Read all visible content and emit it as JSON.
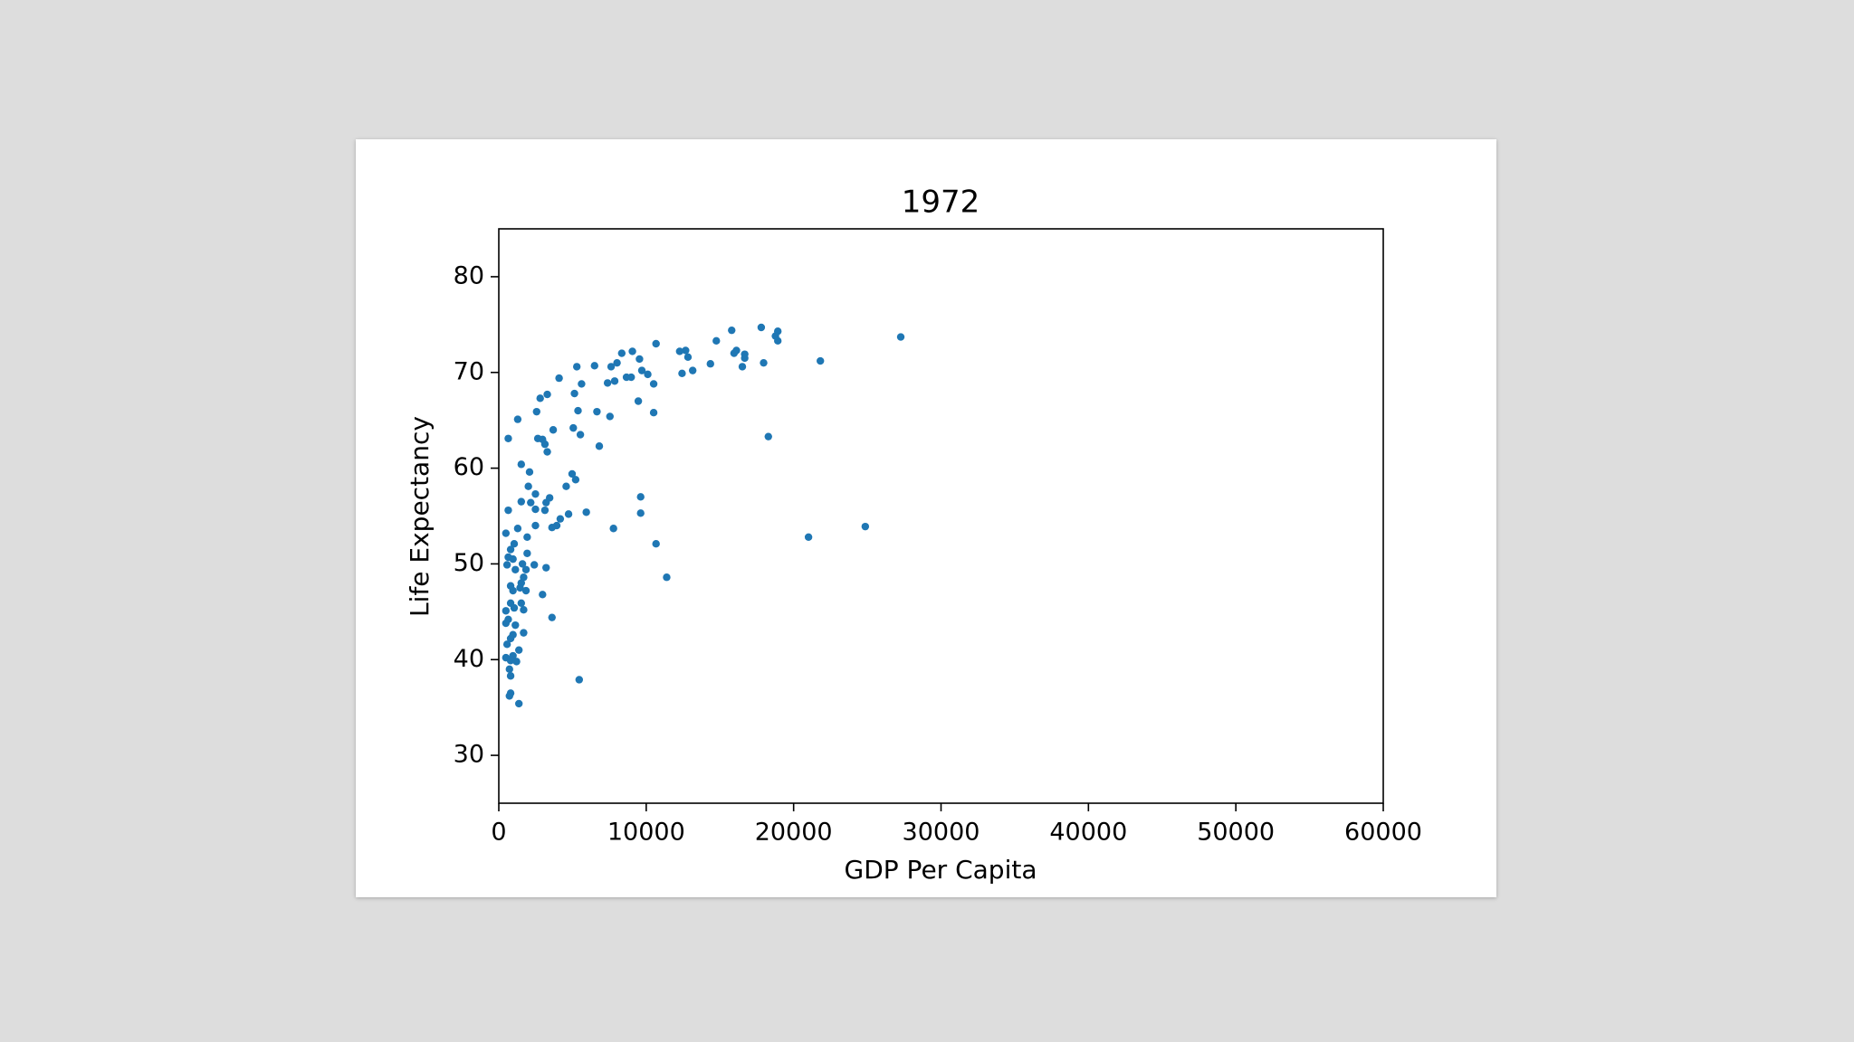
{
  "chart_data": {
    "type": "scatter",
    "title": "1972",
    "x_label": "GDP Per Capita",
    "y_label": "Life Expectancy",
    "color": "#1f77b4",
    "xlim": [
      0,
      60000
    ],
    "ylim": [
      25,
      85
    ],
    "xticks": [
      0,
      10000,
      20000,
      30000,
      40000,
      50000,
      60000
    ],
    "yticks": [
      30,
      40,
      50,
      60,
      70,
      80
    ],
    "x": [
      27268,
      21814,
      18927,
      18927,
      18767,
      17804,
      15799,
      14756,
      16120,
      15960,
      16682,
      16682,
      16521,
      17965,
      18286,
      12672,
      12271,
      12832,
      13153,
      12431,
      14356,
      10667,
      9063,
      9544,
      9704,
      10105,
      10506,
      8982,
      8662,
      7860,
      7378,
      8341,
      8020,
      7619,
      6496,
      5293,
      5614,
      5133,
      4090,
      3288,
      2807,
      1283,
      2566,
      642,
      3689,
      5053,
      5373,
      6657,
      7539,
      9464,
      10506,
      5534,
      6817,
      2647,
      2967,
      3128,
      3288,
      1524,
      2085,
      4972,
      5213,
      4571,
      2005,
      2486,
      3449,
      3208,
      1524,
      2165,
      2486,
      3128,
      642,
      4732,
      5935,
      9624,
      9624,
      7779,
      10667,
      11389,
      21012,
      24862,
      4170,
      3930,
      3609,
      1283,
      2486,
      481,
      1925,
      1043,
      802,
      1925,
      642,
      962,
      3208,
      2406,
      561,
      1123,
      1604,
      1845,
      1684,
      1524,
      1444,
      802,
      962,
      1845,
      802,
      1524,
      1684,
      1043,
      2967,
      3609,
      481,
      642,
      481,
      1123,
      962,
      1684,
      802,
      561,
      1363,
      962,
      481,
      802,
      1203,
      722,
      802,
      5454,
      802,
      722,
      1363
    ],
    "values": [
      73.7,
      71.2,
      74.3,
      73.3,
      73.8,
      74.7,
      74.4,
      73.3,
      72.3,
      72.0,
      71.9,
      71.5,
      70.6,
      71.0,
      63.3,
      72.3,
      72.2,
      71.6,
      70.2,
      69.9,
      70.9,
      73.0,
      72.2,
      71.4,
      70.2,
      69.8,
      68.8,
      69.5,
      69.5,
      69.1,
      68.9,
      72.0,
      71.0,
      70.6,
      70.7,
      70.6,
      68.8,
      67.8,
      69.4,
      67.7,
      67.3,
      65.1,
      65.9,
      63.1,
      64.0,
      64.2,
      66.0,
      65.9,
      65.4,
      67.0,
      65.8,
      63.5,
      62.3,
      63.1,
      63.0,
      62.5,
      61.7,
      60.4,
      59.6,
      59.4,
      58.8,
      58.1,
      58.1,
      57.3,
      56.9,
      56.4,
      56.5,
      56.4,
      55.7,
      55.6,
      55.6,
      55.2,
      55.4,
      57.0,
      55.3,
      53.7,
      52.1,
      48.6,
      52.8,
      53.9,
      54.7,
      54.0,
      53.8,
      53.7,
      54.0,
      53.2,
      52.8,
      52.1,
      51.5,
      51.1,
      50.7,
      50.5,
      49.6,
      49.9,
      49.9,
      49.4,
      50.0,
      49.4,
      48.6,
      48.0,
      47.5,
      47.7,
      47.2,
      47.2,
      45.9,
      45.9,
      45.2,
      45.4,
      46.8,
      44.4,
      45.1,
      44.2,
      43.8,
      43.6,
      42.6,
      42.8,
      42.2,
      41.6,
      41.0,
      40.4,
      40.2,
      39.9,
      39.8,
      39.0,
      38.3,
      37.9,
      36.5,
      36.2,
      35.4
    ]
  }
}
